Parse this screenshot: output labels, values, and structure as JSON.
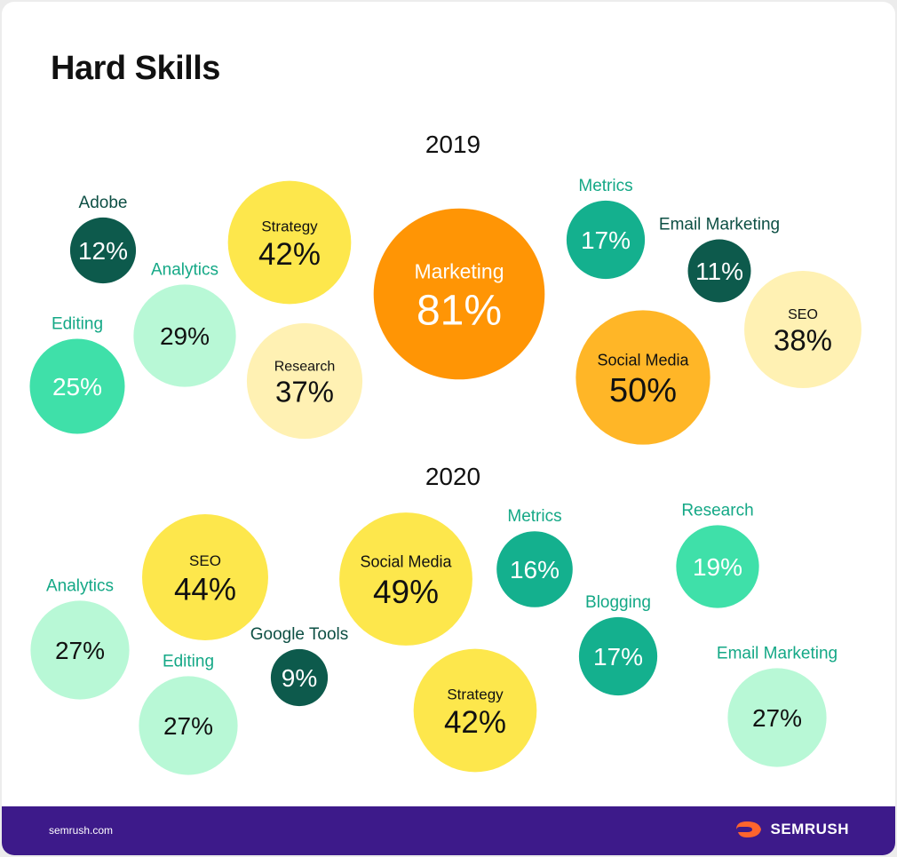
{
  "title": "Hard Skills",
  "footer": {
    "url": "semrush.com",
    "brand": "SEMRUSH"
  },
  "colors": {
    "orange": "#ff9505",
    "amber": "#ffb627",
    "yellow": "#fde74c",
    "light_yellow": "#fff1b3",
    "dark_green": "#0d5a4c",
    "teal": "#14b08e",
    "mint": "#3fe0a9",
    "light_mint": "#b8f8d6",
    "footer_bg": "#3d1a8a",
    "logo_orange": "#ff642d"
  },
  "chart_data": [
    {
      "type": "bubble",
      "title": "2019",
      "series": [
        {
          "label": "Marketing",
          "value": 81,
          "display": "81%",
          "color": "orange"
        },
        {
          "label": "Social Media",
          "value": 50,
          "display": "50%",
          "color": "amber"
        },
        {
          "label": "Strategy",
          "value": 42,
          "display": "42%",
          "color": "yellow"
        },
        {
          "label": "SEO",
          "value": 38,
          "display": "38%",
          "color": "light_yellow"
        },
        {
          "label": "Research",
          "value": 37,
          "display": "37%",
          "color": "light_yellow"
        },
        {
          "label": "Analytics",
          "value": 29,
          "display": "29%",
          "color": "light_mint"
        },
        {
          "label": "Editing",
          "value": 25,
          "display": "25%",
          "color": "mint"
        },
        {
          "label": "Metrics",
          "value": 17,
          "display": "17%",
          "color": "teal"
        },
        {
          "label": "Adobe",
          "value": 12,
          "display": "12%",
          "color": "dark_green"
        },
        {
          "label": "Email Marketing",
          "value": 11,
          "display": "11%",
          "color": "dark_green"
        }
      ]
    },
    {
      "type": "bubble",
      "title": "2020",
      "series": [
        {
          "label": "Social Media",
          "value": 49,
          "display": "49%",
          "color": "yellow"
        },
        {
          "label": "SEO",
          "value": 44,
          "display": "44%",
          "color": "yellow"
        },
        {
          "label": "Strategy",
          "value": 42,
          "display": "42%",
          "color": "yellow"
        },
        {
          "label": "Analytics",
          "value": 27,
          "display": "27%",
          "color": "light_mint"
        },
        {
          "label": "Editing",
          "value": 27,
          "display": "27%",
          "color": "light_mint"
        },
        {
          "label": "Email Marketing",
          "value": 27,
          "display": "27%",
          "color": "light_mint"
        },
        {
          "label": "Research",
          "value": 19,
          "display": "19%",
          "color": "mint"
        },
        {
          "label": "Metrics",
          "value": 16,
          "display": "16%",
          "color": "teal"
        },
        {
          "label": "Blogging",
          "value": 17,
          "display": "17%",
          "color": "teal"
        },
        {
          "label": "Google Tools",
          "value": 9,
          "display": "9%",
          "color": "dark_green"
        }
      ]
    }
  ]
}
